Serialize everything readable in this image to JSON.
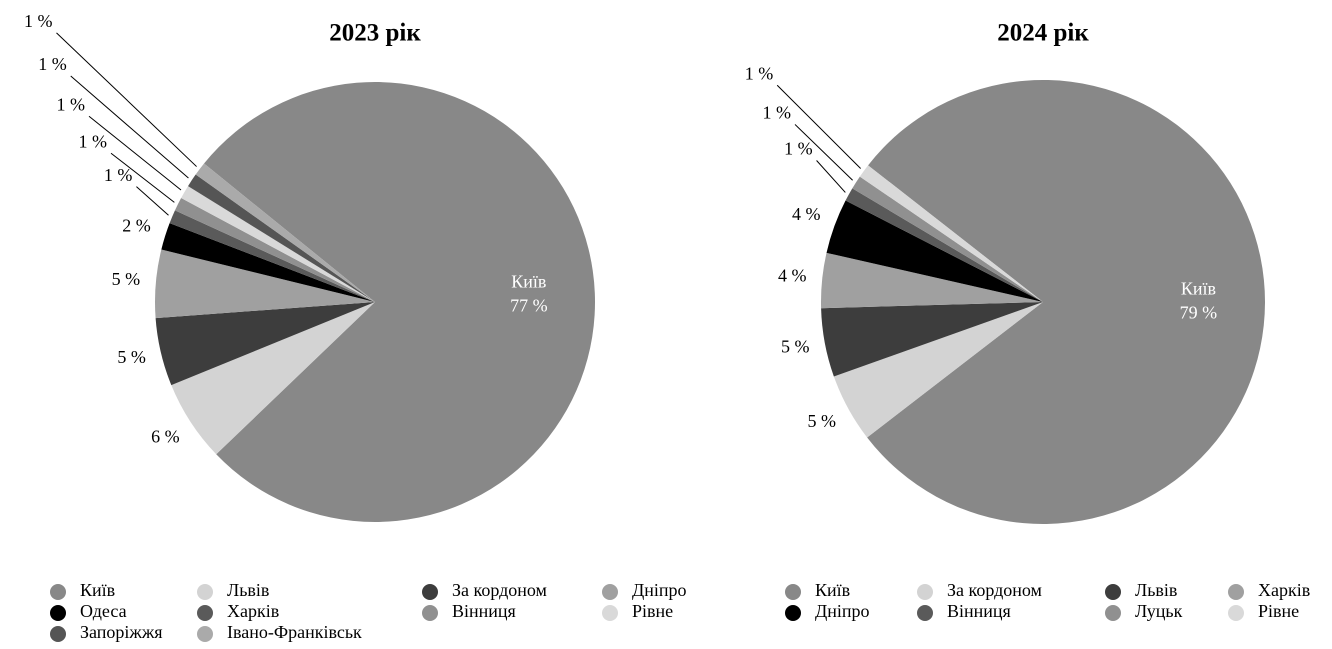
{
  "chart_data": [
    {
      "type": "pie",
      "title": "2023 рік",
      "categories": [
        "Київ",
        "Львів",
        "За кордоном",
        "Дніпро",
        "Одеса",
        "Харків",
        "Вінниця",
        "Рівне",
        "Запоріжжя",
        "Івано-Франківськ"
      ],
      "values": [
        77,
        6,
        5,
        5,
        2,
        1,
        1,
        1,
        1,
        1
      ],
      "value_labels": [
        "77 %",
        "6 %",
        "5 %",
        "5 %",
        "2 %",
        "1 %",
        "1 %",
        "1 %",
        "1 %",
        "1 %"
      ],
      "colors": [
        "#888888",
        "#d3d3d3",
        "#3d3d3d",
        "#a0a0a0",
        "#000000",
        "#5a5a5a",
        "#909090",
        "#d9d9d9",
        "#555555",
        "#aaaaaa"
      ]
    },
    {
      "type": "pie",
      "title": "2024 рік",
      "categories": [
        "Київ",
        "За кордоном",
        "Львів",
        "Харків",
        "Дніпро",
        "Вінниця",
        "Луцьк",
        "Рівне"
      ],
      "values": [
        79,
        5,
        5,
        4,
        4,
        1,
        1,
        1
      ],
      "value_labels": [
        "79 %",
        "5 %",
        "5 %",
        "4 %",
        "4 %",
        "1 %",
        "1 %",
        "1 %"
      ],
      "colors": [
        "#888888",
        "#d3d3d3",
        "#3d3d3d",
        "#a0a0a0",
        "#000000",
        "#5a5a5a",
        "#909090",
        "#d9d9d9"
      ]
    }
  ]
}
